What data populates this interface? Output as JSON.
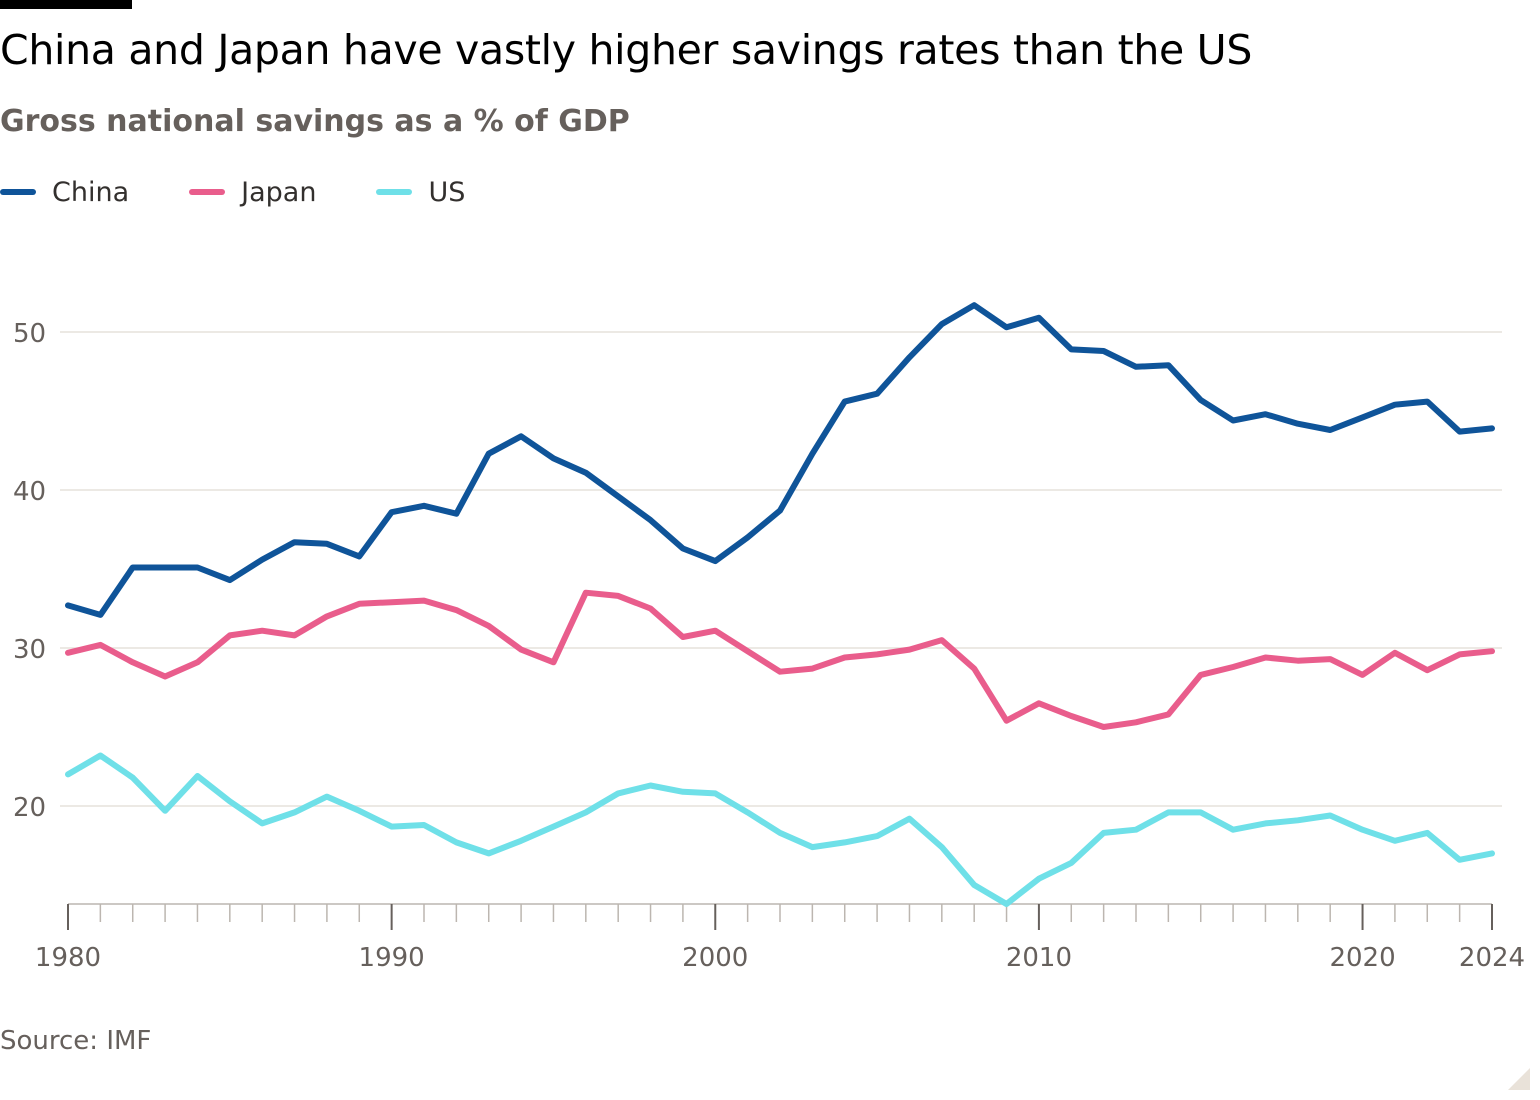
{
  "chart_data": {
    "type": "line",
    "title": "China and Japan have vastly higher savings rates than the US",
    "subtitle": "Gross national savings as a % of GDP",
    "source": "Source: IMF",
    "x": [
      1980,
      1981,
      1982,
      1983,
      1984,
      1985,
      1986,
      1987,
      1988,
      1989,
      1990,
      1991,
      1992,
      1993,
      1994,
      1995,
      1996,
      1997,
      1998,
      1999,
      2000,
      2001,
      2002,
      2003,
      2004,
      2005,
      2006,
      2007,
      2008,
      2009,
      2010,
      2011,
      2012,
      2013,
      2014,
      2015,
      2016,
      2017,
      2018,
      2019,
      2020,
      2021,
      2022,
      2023,
      2024
    ],
    "xticks": [
      "1980",
      "1990",
      "2000",
      "2010",
      "2020",
      "2024"
    ],
    "xtick_values": [
      1980,
      1990,
      2000,
      2010,
      2020,
      2024
    ],
    "yticks": [
      "20",
      "30",
      "40",
      "50"
    ],
    "ytick_values": [
      20,
      30,
      40,
      50
    ],
    "xlim": [
      1980,
      2024
    ],
    "ylim": [
      13.8,
      53.8
    ],
    "grid": "horizontal",
    "legend_position": "top-left",
    "series": [
      {
        "name": "China",
        "color": "#0f5499",
        "values": [
          32.7,
          32.1,
          35.1,
          35.1,
          35.1,
          34.3,
          35.6,
          36.7,
          36.6,
          35.8,
          38.6,
          39.0,
          38.5,
          42.3,
          43.4,
          42.0,
          41.1,
          39.6,
          38.1,
          36.3,
          35.5,
          37.0,
          38.7,
          42.3,
          45.6,
          46.1,
          48.4,
          50.5,
          51.7,
          50.3,
          50.9,
          48.9,
          48.8,
          47.8,
          47.9,
          45.7,
          44.4,
          44.8,
          44.2,
          43.8,
          44.6,
          45.4,
          45.6,
          43.7,
          43.9
        ]
      },
      {
        "name": "Japan",
        "color": "#e95d8c",
        "values": [
          29.7,
          30.2,
          29.1,
          28.2,
          29.1,
          30.8,
          31.1,
          30.8,
          32.0,
          32.8,
          32.9,
          33.0,
          32.4,
          31.4,
          29.9,
          29.1,
          33.5,
          33.3,
          32.5,
          30.7,
          31.1,
          29.8,
          28.5,
          28.7,
          29.4,
          29.6,
          29.9,
          30.5,
          28.7,
          25.4,
          26.5,
          25.7,
          25.0,
          25.3,
          25.8,
          28.3,
          28.8,
          29.4,
          29.2,
          29.3,
          28.3,
          29.7,
          28.6,
          29.6,
          29.8
        ]
      },
      {
        "name": "US",
        "color": "#6fe0e8",
        "values": [
          22.0,
          23.2,
          21.8,
          19.7,
          21.9,
          20.3,
          18.9,
          19.6,
          20.6,
          19.7,
          18.7,
          18.8,
          17.7,
          17.0,
          17.8,
          18.7,
          19.6,
          20.8,
          21.3,
          20.9,
          20.8,
          19.6,
          18.3,
          17.4,
          17.7,
          18.1,
          19.2,
          17.4,
          15.0,
          13.8,
          15.4,
          16.4,
          18.3,
          18.5,
          19.6,
          19.6,
          18.5,
          18.9,
          19.1,
          19.4,
          18.5,
          17.8,
          18.3,
          16.6,
          17.0
        ]
      }
    ]
  }
}
